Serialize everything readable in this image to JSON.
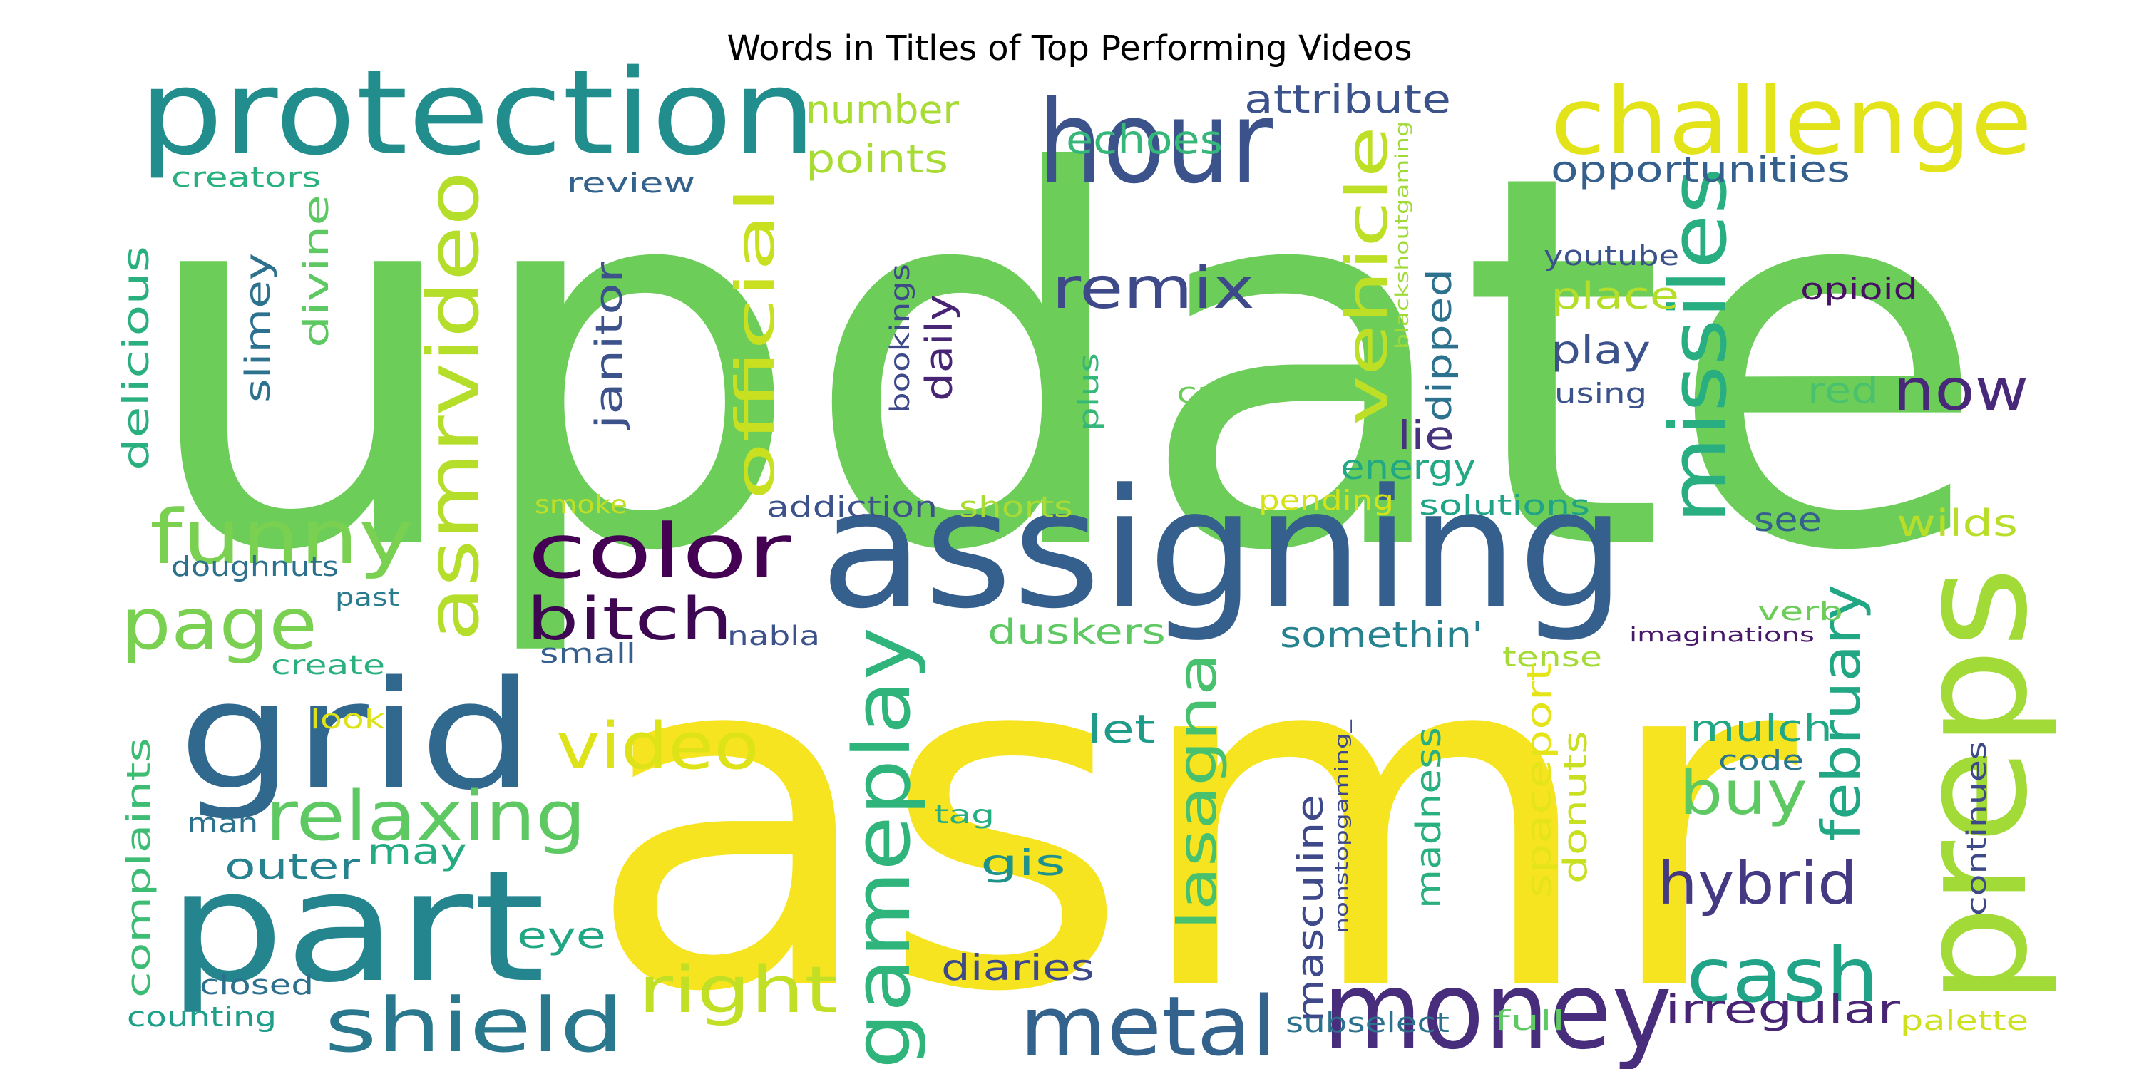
{
  "chart_data": {
    "type": "wordcloud",
    "title": "Words in Titles of Top Performing Videos",
    "words": [
      {
        "text": "update",
        "color": "#6ccd59"
      },
      {
        "text": "asmr",
        "color": "#f5e41f"
      },
      {
        "text": "assigning",
        "color": "#355f8d"
      },
      {
        "text": "protection",
        "color": "#218e8d"
      },
      {
        "text": "hour",
        "color": "#3b528b"
      },
      {
        "text": "challenge",
        "color": "#e2e419"
      },
      {
        "text": "preps",
        "color": "#a2da37"
      },
      {
        "text": "grid",
        "color": "#31688e"
      },
      {
        "text": "part",
        "color": "#25858e"
      },
      {
        "text": "money",
        "color": "#472d7b"
      },
      {
        "text": "missiles",
        "color": "#28ae80"
      },
      {
        "text": "gameplay",
        "color": "#2fb47c"
      },
      {
        "text": "metal",
        "color": "#33638d"
      },
      {
        "text": "shield",
        "color": "#2a788e"
      },
      {
        "text": "cash",
        "color": "#20a386"
      },
      {
        "text": "asmrvideo",
        "color": "#b5de2b"
      },
      {
        "text": "color",
        "color": "#440154"
      },
      {
        "text": "funny",
        "color": "#7ad151"
      },
      {
        "text": "page",
        "color": "#7ad151"
      },
      {
        "text": "bitch",
        "color": "#3e0751"
      },
      {
        "text": "relaxing",
        "color": "#5ec962"
      },
      {
        "text": "video",
        "color": "#dde318"
      },
      {
        "text": "right",
        "color": "#c0df25"
      },
      {
        "text": "remix",
        "color": "#3e4989"
      },
      {
        "text": "official",
        "color": "#c8e020"
      },
      {
        "text": "vehicle",
        "color": "#bddf26"
      },
      {
        "text": "lasagna",
        "color": "#48c16e"
      },
      {
        "text": "hybrid",
        "color": "#443983"
      },
      {
        "text": "february",
        "color": "#22a785"
      },
      {
        "text": "buy",
        "color": "#5ec962"
      },
      {
        "text": "now",
        "color": "#482878"
      },
      {
        "text": "irregular",
        "color": "#482475"
      },
      {
        "text": "masculine",
        "color": "#3e4989"
      },
      {
        "text": "janitor",
        "color": "#3b528b"
      },
      {
        "text": "delicious",
        "color": "#2ab07f"
      },
      {
        "text": "slimey",
        "color": "#2c728e"
      },
      {
        "text": "divine",
        "color": "#5ec962"
      },
      {
        "text": "complaints",
        "color": "#3dbc74"
      },
      {
        "text": "number",
        "color": "#a8db34"
      },
      {
        "text": "points",
        "color": "#a8db34"
      },
      {
        "text": "echoes",
        "color": "#35b779"
      },
      {
        "text": "attribute",
        "color": "#3b528b"
      },
      {
        "text": "opportunities",
        "color": "#355f8d"
      },
      {
        "text": "creators",
        "color": "#2ab07f"
      },
      {
        "text": "review",
        "color": "#33638d"
      },
      {
        "text": "daily",
        "color": "#482475"
      },
      {
        "text": "bookings",
        "color": "#3e4989"
      },
      {
        "text": "dipped",
        "color": "#2c728e"
      },
      {
        "text": "blackshoutgaming",
        "color": "#a0da39"
      },
      {
        "text": "youtube",
        "color": "#3b528b"
      },
      {
        "text": "opioid",
        "color": "#471063"
      },
      {
        "text": "place",
        "color": "#b5de2b"
      },
      {
        "text": "play",
        "color": "#3b528b"
      },
      {
        "text": "using",
        "color": "#3b528b"
      },
      {
        "text": "red",
        "color": "#4ac16d"
      },
      {
        "text": "plus",
        "color": "#35b779"
      },
      {
        "text": "cutie",
        "color": "#6ccd59"
      },
      {
        "text": "lie",
        "color": "#46337e"
      },
      {
        "text": "energy",
        "color": "#22a884"
      },
      {
        "text": "smoke",
        "color": "#c2df23"
      },
      {
        "text": "addiction",
        "color": "#3b528b"
      },
      {
        "text": "shorts",
        "color": "#a8db34"
      },
      {
        "text": "pending",
        "color": "#d5e21a"
      },
      {
        "text": "solutions",
        "color": "#20a386"
      },
      {
        "text": "see",
        "color": "#355f8d"
      },
      {
        "text": "wilds",
        "color": "#b8de29"
      },
      {
        "text": "somethin'",
        "color": "#26828e"
      },
      {
        "text": "duskers",
        "color": "#5ec962"
      },
      {
        "text": "doughnuts",
        "color": "#2d708e"
      },
      {
        "text": "past",
        "color": "#297b8e"
      },
      {
        "text": "nabla",
        "color": "#3b528b"
      },
      {
        "text": "small",
        "color": "#355f8d"
      },
      {
        "text": "verb",
        "color": "#6ccd59"
      },
      {
        "text": "imaginations",
        "color": "#48186a"
      },
      {
        "text": "create",
        "color": "#2ab07f"
      },
      {
        "text": "look",
        "color": "#dde318"
      },
      {
        "text": "tense",
        "color": "#a5db36"
      },
      {
        "text": "let",
        "color": "#1e9c89"
      },
      {
        "text": "mulch",
        "color": "#22a785"
      },
      {
        "text": "code",
        "color": "#2a768e"
      },
      {
        "text": "continues",
        "color": "#3e4989"
      },
      {
        "text": "spaceport",
        "color": "#e5e419"
      },
      {
        "text": "donuts",
        "color": "#c8e020"
      },
      {
        "text": "madness",
        "color": "#2ab07f"
      },
      {
        "text": "nonstopgaming_",
        "color": "#3e4989"
      },
      {
        "text": "gis",
        "color": "#20928c"
      },
      {
        "text": "tag",
        "color": "#26ad81"
      },
      {
        "text": "may",
        "color": "#25ab82"
      },
      {
        "text": "outer",
        "color": "#26828e"
      },
      {
        "text": "man",
        "color": "#2c728e"
      },
      {
        "text": "eye",
        "color": "#22a785"
      },
      {
        "text": "diaries",
        "color": "#3e4989"
      },
      {
        "text": "closed",
        "color": "#2d708e"
      },
      {
        "text": "counting",
        "color": "#1f9e89"
      },
      {
        "text": "subselect",
        "color": "#2c728e"
      },
      {
        "text": "full",
        "color": "#5ec962"
      },
      {
        "text": "palette",
        "color": "#cde11d"
      }
    ]
  }
}
